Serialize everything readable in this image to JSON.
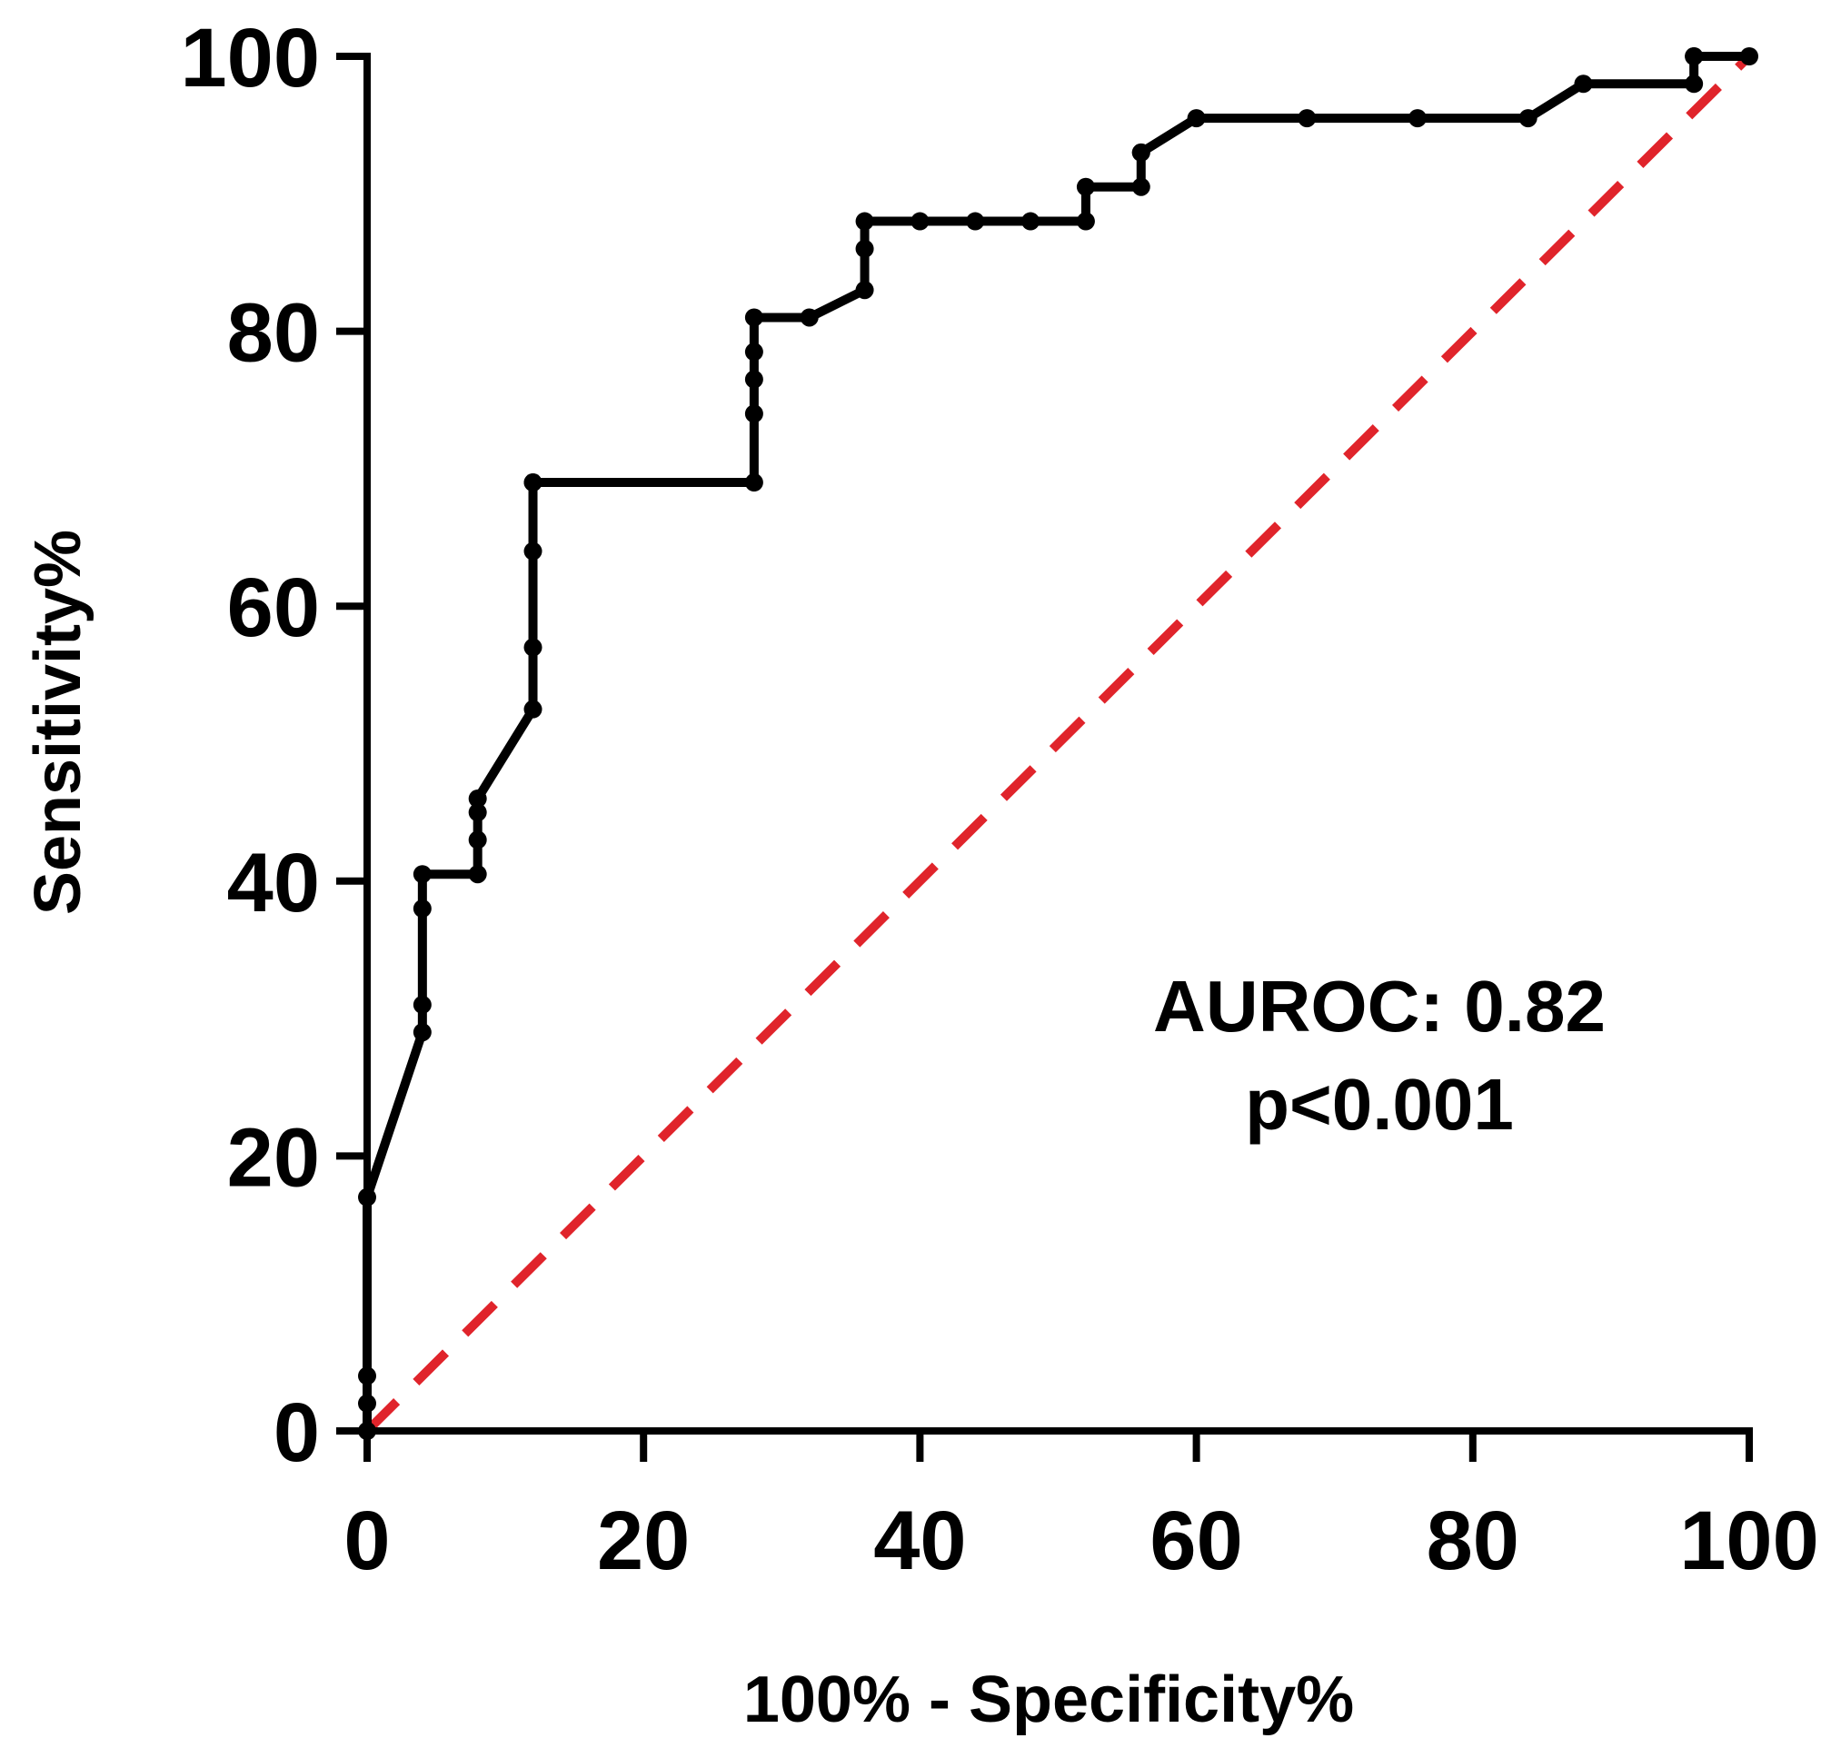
{
  "chart_data": {
    "type": "line",
    "title": "",
    "xlabel": "100% - Specificity%",
    "ylabel": "Sensitivity%",
    "xlim": [
      0,
      100
    ],
    "ylim": [
      0,
      100
    ],
    "x_ticks": [
      0,
      20,
      40,
      60,
      80,
      100
    ],
    "y_ticks": [
      0,
      20,
      40,
      60,
      80,
      100
    ],
    "x_tick_labels": [
      "0",
      "20",
      "40",
      "60",
      "80",
      "100"
    ],
    "y_tick_labels": [
      "0",
      "20",
      "40",
      "60",
      "80",
      "100"
    ],
    "grid": false,
    "legend": "none",
    "annotations": [
      "AUROC: 0.82",
      "p<0.001"
    ],
    "series": [
      {
        "color": "#000000",
        "x": [
          0,
          0,
          0,
          0,
          4,
          4,
          4,
          4,
          8,
          8,
          8,
          8,
          12,
          12,
          12,
          12,
          12,
          28,
          28,
          28,
          28,
          28,
          32,
          36,
          36,
          36,
          40,
          44,
          48,
          52,
          52,
          56,
          56,
          56,
          60,
          68,
          76,
          84,
          88,
          96,
          96,
          96,
          100
        ],
        "y": [
          0,
          2,
          4,
          17,
          29,
          31,
          38,
          40.5,
          40.5,
          43,
          45,
          46,
          52.5,
          57,
          64,
          69,
          69,
          69,
          74,
          76.5,
          78.5,
          81,
          81,
          83,
          86,
          88,
          88,
          88,
          88,
          88,
          90.5,
          90.5,
          93,
          93,
          95.5,
          95.5,
          95.5,
          95.5,
          98,
          98,
          100,
          100,
          100
        ]
      },
      {
        "color": "#e0242b",
        "x": [
          0,
          100
        ],
        "y": [
          0,
          100
        ]
      }
    ]
  }
}
